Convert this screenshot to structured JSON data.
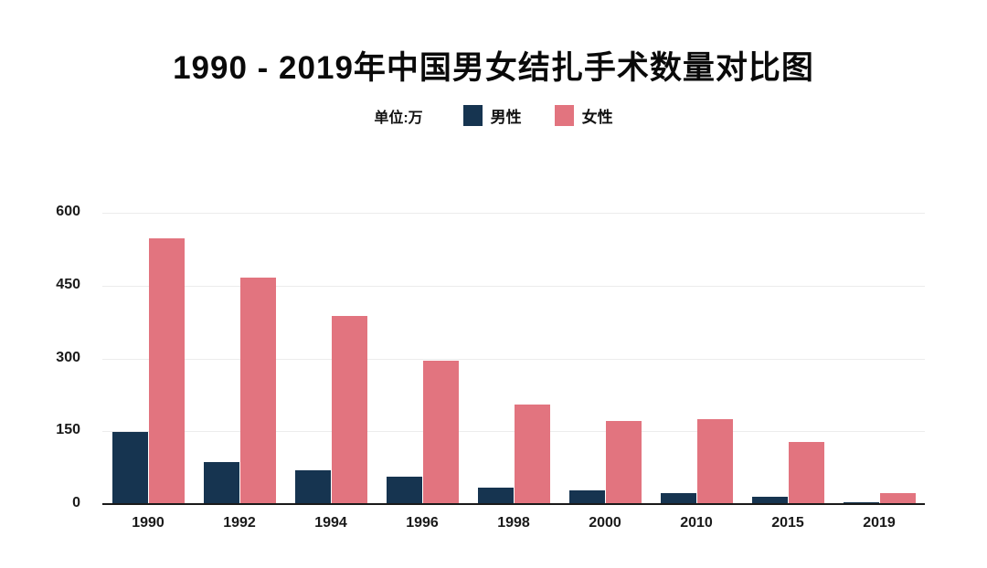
{
  "title": "1990 - 2019年中国男女结扎手术数量对比图",
  "legend": {
    "unit_label": "单位:万",
    "male_label": "男性",
    "female_label": "女性"
  },
  "colors": {
    "male": "#163450",
    "female": "#e2747f",
    "grid": "#ececec",
    "axis": "#1a1a1a",
    "background": "#ffffff"
  },
  "chart_data": {
    "type": "bar",
    "title": "1990 - 2019年中国男女结扎手术数量对比图",
    "unit": "万",
    "categories": [
      "1990",
      "1992",
      "1994",
      "1996",
      "1998",
      "2000",
      "2010",
      "2015",
      "2019"
    ],
    "series": [
      {
        "name": "男性",
        "color": "#163450",
        "values": [
          148,
          87,
          70,
          56,
          34,
          29,
          22,
          15,
          3
        ]
      },
      {
        "name": "女性",
        "color": "#e2747f",
        "values": [
          547,
          466,
          388,
          296,
          205,
          171,
          175,
          128,
          23
        ]
      }
    ],
    "ylim": [
      0,
      600
    ],
    "yticks": [
      0,
      150,
      300,
      450,
      600
    ],
    "xlabel": "",
    "ylabel": "",
    "grid": true,
    "legend_position": "top-center"
  }
}
